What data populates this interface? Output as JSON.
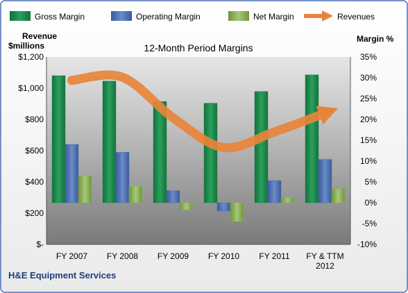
{
  "company": "H&E Equipment Services",
  "colors": {
    "gross": "#1f8a4c",
    "operating": "#4a6fb5",
    "net": "#8db05a",
    "revenue": "#e8843a"
  },
  "chart_data": {
    "type": "bar",
    "title": "12-Month Period Margins",
    "categories": [
      "FY 2007",
      "FY 2008",
      "FY 2009",
      "FY 2010",
      "FY 2011",
      "FY & TTM 2012"
    ],
    "series": [
      {
        "name": "Gross Margin",
        "values": [
          30.5,
          29.2,
          24.3,
          23.9,
          26.7,
          30.7
        ]
      },
      {
        "name": "Operating Margin",
        "values": [
          14.0,
          12.1,
          2.9,
          -2.0,
          5.3,
          10.4
        ]
      },
      {
        "name": "Net Margin",
        "values": [
          6.5,
          4.0,
          -1.7,
          -4.5,
          1.2,
          3.4
        ]
      }
    ],
    "line_series": [
      {
        "name": "Revenues",
        "values": [
          1050,
          1070,
          810,
          620,
          720,
          840
        ]
      }
    ],
    "ylabel_left": "Revenue $millions",
    "ylabel_right": "Margin %",
    "ylim_left": [
      0,
      1200
    ],
    "ylim_right": [
      -10,
      35
    ],
    "yticks_left": [
      "$1,200",
      "$1,000",
      "$800",
      "$600",
      "$400",
      "$200",
      "$-"
    ],
    "yticks_right": [
      "35%",
      "30%",
      "25%",
      "20%",
      "15%",
      "10%",
      "5%",
      "0%",
      "-5%",
      "-10%"
    ],
    "legend": [
      "Gross Margin",
      "Operating Margin",
      "Net Margin",
      "Revenues"
    ],
    "legend_position": "top",
    "grid": false
  }
}
